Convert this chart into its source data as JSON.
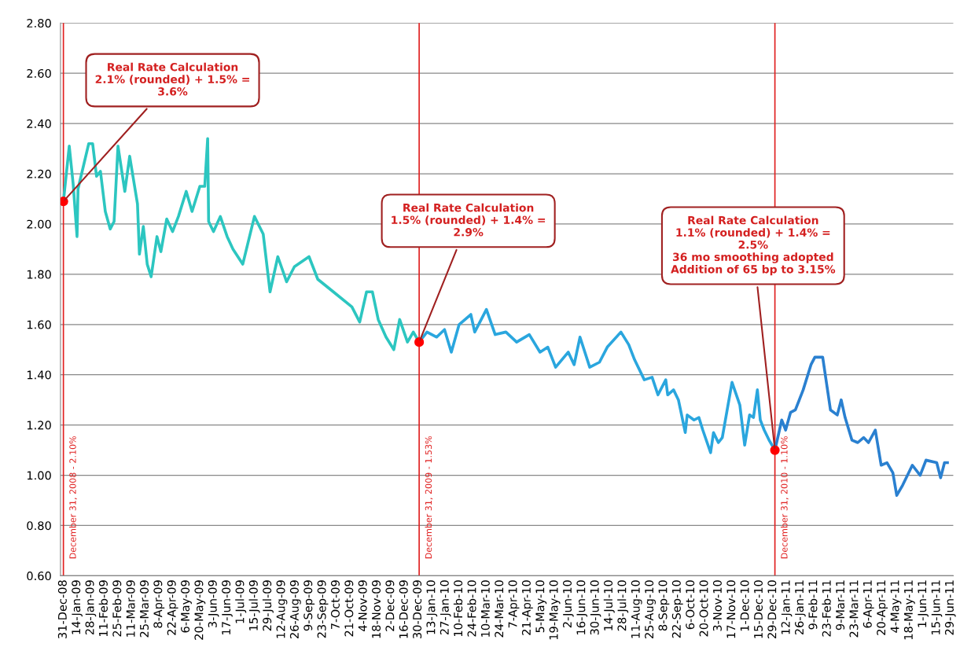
{
  "chart_data": {
    "type": "line",
    "ylim": [
      0.6,
      2.8
    ],
    "yticks": [
      {
        "value": 0.6,
        "label": "0.60"
      },
      {
        "value": 0.8,
        "label": "0.80"
      },
      {
        "value": 1.0,
        "label": "1.00"
      },
      {
        "value": 1.2,
        "label": "1.20"
      },
      {
        "value": 1.4,
        "label": "1.40"
      },
      {
        "value": 1.6,
        "label": "1.60"
      },
      {
        "value": 1.8,
        "label": "1.80"
      },
      {
        "value": 2.0,
        "label": "2.00"
      },
      {
        "value": 2.2,
        "label": "2.20"
      },
      {
        "value": 2.4,
        "label": "2.40"
      },
      {
        "value": 2.6,
        "label": "2.60"
      },
      {
        "value": 2.8,
        "label": "2.80"
      }
    ],
    "xlim": [
      "2008-12-28",
      "2011-07-02"
    ],
    "xticks": [
      {
        "value": "2008-12-31",
        "label": "31-Dec-08"
      },
      {
        "value": "2009-01-14",
        "label": "14-Jan-09"
      },
      {
        "value": "2009-01-28",
        "label": "28-Jan-09"
      },
      {
        "value": "2009-02-11",
        "label": "11-Feb-09"
      },
      {
        "value": "2009-02-25",
        "label": "25-Feb-09"
      },
      {
        "value": "2009-03-11",
        "label": "11-Mar-09"
      },
      {
        "value": "2009-03-25",
        "label": "25-Mar-09"
      },
      {
        "value": "2009-04-08",
        "label": "8-Apr-09"
      },
      {
        "value": "2009-04-22",
        "label": "22-Apr-09"
      },
      {
        "value": "2009-05-06",
        "label": "6-May-09"
      },
      {
        "value": "2009-05-20",
        "label": "20-May-09"
      },
      {
        "value": "2009-06-03",
        "label": "3-Jun-09"
      },
      {
        "value": "2009-06-17",
        "label": "17-Jun-09"
      },
      {
        "value": "2009-07-01",
        "label": "1-Jul-09"
      },
      {
        "value": "2009-07-15",
        "label": "15-Jul-09"
      },
      {
        "value": "2009-07-29",
        "label": "29-Jul-09"
      },
      {
        "value": "2009-08-12",
        "label": "12-Aug-09"
      },
      {
        "value": "2009-08-26",
        "label": "26-Aug-09"
      },
      {
        "value": "2009-09-09",
        "label": "9-Sep-09"
      },
      {
        "value": "2009-09-23",
        "label": "23-Sep-09"
      },
      {
        "value": "2009-10-07",
        "label": "7-Oct-09"
      },
      {
        "value": "2009-10-21",
        "label": "21-Oct-09"
      },
      {
        "value": "2009-11-04",
        "label": "4-Nov-09"
      },
      {
        "value": "2009-11-18",
        "label": "18-Nov-09"
      },
      {
        "value": "2009-12-02",
        "label": "2-Dec-09"
      },
      {
        "value": "2009-12-16",
        "label": "16-Dec-09"
      },
      {
        "value": "2009-12-30",
        "label": "30-Dec-09"
      },
      {
        "value": "2010-01-13",
        "label": "13-Jan-10"
      },
      {
        "value": "2010-01-27",
        "label": "27-Jan-10"
      },
      {
        "value": "2010-02-10",
        "label": "10-Feb-10"
      },
      {
        "value": "2010-02-24",
        "label": "24-Feb-10"
      },
      {
        "value": "2010-03-10",
        "label": "10-Mar-10"
      },
      {
        "value": "2010-03-24",
        "label": "24-Mar-10"
      },
      {
        "value": "2010-04-07",
        "label": "7-Apr-10"
      },
      {
        "value": "2010-04-21",
        "label": "21-Apr-10"
      },
      {
        "value": "2010-05-05",
        "label": "5-May-10"
      },
      {
        "value": "2010-05-19",
        "label": "19-May-10"
      },
      {
        "value": "2010-06-02",
        "label": "2-Jun-10"
      },
      {
        "value": "2010-06-16",
        "label": "16-Jun-10"
      },
      {
        "value": "2010-06-30",
        "label": "30-Jun-10"
      },
      {
        "value": "2010-07-14",
        "label": "14-Jul-10"
      },
      {
        "value": "2010-07-28",
        "label": "28-Jul-10"
      },
      {
        "value": "2010-08-11",
        "label": "11-Aug-10"
      },
      {
        "value": "2010-08-25",
        "label": "25-Aug-10"
      },
      {
        "value": "2010-09-08",
        "label": "8-Sep-10"
      },
      {
        "value": "2010-09-22",
        "label": "22-Sep-10"
      },
      {
        "value": "2010-10-06",
        "label": "6-Oct-10"
      },
      {
        "value": "2010-10-20",
        "label": "20-Oct-10"
      },
      {
        "value": "2010-11-03",
        "label": "3-Nov-10"
      },
      {
        "value": "2010-11-17",
        "label": "17-Nov-10"
      },
      {
        "value": "2010-12-01",
        "label": "1-Dec-10"
      },
      {
        "value": "2010-12-15",
        "label": "15-Dec-10"
      },
      {
        "value": "2010-12-29",
        "label": "29-Dec-10"
      },
      {
        "value": "2011-01-12",
        "label": "12-Jan-11"
      },
      {
        "value": "2011-01-26",
        "label": "26-Jan-11"
      },
      {
        "value": "2011-02-09",
        "label": "9-Feb-11"
      },
      {
        "value": "2011-02-23",
        "label": "23-Feb-11"
      },
      {
        "value": "2011-03-09",
        "label": "9-Mar-11"
      },
      {
        "value": "2011-03-23",
        "label": "23-Mar-11"
      },
      {
        "value": "2011-04-06",
        "label": "6-Apr-11"
      },
      {
        "value": "2011-04-20",
        "label": "20-Apr-11"
      },
      {
        "value": "2011-05-04",
        "label": "4-May-11"
      },
      {
        "value": "2011-05-18",
        "label": "18-May-11"
      },
      {
        "value": "2011-06-01",
        "label": "1-Jun-11"
      },
      {
        "value": "2011-06-15",
        "label": "15-Jun-11"
      },
      {
        "value": "2011-06-29",
        "label": "29-Jun-11"
      }
    ],
    "grid": "y",
    "legend": false,
    "line_style": "solid",
    "series": [
      {
        "color": "#2cc6c0",
        "x": [
          "2008-12-31",
          "2009-01-06",
          "2009-01-10",
          "2009-01-14",
          "2009-01-15",
          "2009-01-26",
          "2009-01-30",
          "2009-02-03",
          "2009-02-07",
          "2009-02-12",
          "2009-02-17",
          "2009-02-21",
          "2009-02-25",
          "2009-03-04",
          "2009-03-09",
          "2009-03-17",
          "2009-03-19",
          "2009-03-23",
          "2009-03-27",
          "2009-03-31",
          "2009-04-06",
          "2009-04-10",
          "2009-04-16",
          "2009-04-22",
          "2009-04-28",
          "2009-05-06",
          "2009-05-12",
          "2009-05-20",
          "2009-05-25",
          "2009-05-28",
          "2009-05-29",
          "2009-06-03",
          "2009-06-10",
          "2009-06-17",
          "2009-06-23",
          "2009-07-03",
          "2009-07-15",
          "2009-07-24",
          "2009-07-31",
          "2009-08-08",
          "2009-08-17",
          "2009-08-25",
          "2009-09-09",
          "2009-09-18",
          "2009-10-04",
          "2009-10-23",
          "2009-10-31",
          "2009-11-07",
          "2009-11-13",
          "2009-11-19",
          "2009-11-27",
          "2009-12-05",
          "2009-12-11",
          "2009-12-19",
          "2009-12-25",
          "2009-12-31"
        ],
        "values": [
          2.09,
          2.31,
          2.16,
          1.95,
          2.14,
          2.32,
          2.32,
          2.19,
          2.21,
          2.05,
          1.98,
          2.01,
          2.31,
          2.13,
          2.27,
          2.08,
          1.88,
          1.99,
          1.84,
          1.79,
          1.95,
          1.89,
          2.02,
          1.97,
          2.03,
          2.13,
          2.05,
          2.15,
          2.15,
          2.34,
          2.01,
          1.97,
          2.03,
          1.95,
          1.9,
          1.84,
          2.03,
          1.96,
          1.73,
          1.87,
          1.77,
          1.83,
          1.87,
          1.78,
          1.73,
          1.67,
          1.61,
          1.73,
          1.73,
          1.62,
          1.55,
          1.5,
          1.62,
          1.53,
          1.57,
          1.53
        ]
      },
      {
        "color": "#2aa6de",
        "x": [
          "2009-12-31",
          "2010-01-08",
          "2010-01-18",
          "2010-01-26",
          "2010-02-02",
          "2010-02-10",
          "2010-02-22",
          "2010-02-26",
          "2010-03-10",
          "2010-03-19",
          "2010-03-30",
          "2010-04-10",
          "2010-04-23",
          "2010-05-04",
          "2010-05-12",
          "2010-05-20",
          "2010-06-02",
          "2010-06-08",
          "2010-06-14",
          "2010-06-24",
          "2010-07-04",
          "2010-07-12",
          "2010-07-26",
          "2010-08-03",
          "2010-08-09",
          "2010-08-19",
          "2010-08-27",
          "2010-09-02",
          "2010-09-10",
          "2010-09-12",
          "2010-09-18",
          "2010-09-23",
          "2010-09-30",
          "2010-10-02",
          "2010-10-09",
          "2010-10-14",
          "2010-10-18",
          "2010-10-26",
          "2010-10-29",
          "2010-11-03",
          "2010-11-07",
          "2010-11-17",
          "2010-11-25",
          "2010-11-30",
          "2010-12-05",
          "2010-12-09",
          "2010-12-13",
          "2010-12-16",
          "2010-12-20",
          "2010-12-25",
          "2010-12-31"
        ],
        "values": [
          1.53,
          1.57,
          1.55,
          1.58,
          1.49,
          1.6,
          1.64,
          1.57,
          1.66,
          1.56,
          1.57,
          1.53,
          1.56,
          1.49,
          1.51,
          1.43,
          1.49,
          1.44,
          1.55,
          1.43,
          1.45,
          1.51,
          1.57,
          1.52,
          1.46,
          1.38,
          1.39,
          1.32,
          1.38,
          1.32,
          1.34,
          1.3,
          1.17,
          1.24,
          1.22,
          1.23,
          1.18,
          1.09,
          1.17,
          1.13,
          1.15,
          1.37,
          1.28,
          1.12,
          1.24,
          1.23,
          1.34,
          1.22,
          1.18,
          1.14,
          1.1
        ]
      },
      {
        "color": "#2a80d0",
        "x": [
          "2010-12-31",
          "2011-01-07",
          "2011-01-11",
          "2011-01-16",
          "2011-01-21",
          "2011-01-29",
          "2011-02-06",
          "2011-02-10",
          "2011-02-18",
          "2011-02-26",
          "2011-03-05",
          "2011-03-09",
          "2011-03-13",
          "2011-03-20",
          "2011-03-26",
          "2011-04-01",
          "2011-04-06",
          "2011-04-13",
          "2011-04-19",
          "2011-04-25",
          "2011-05-01",
          "2011-05-05",
          "2011-05-11",
          "2011-05-21",
          "2011-05-29",
          "2011-06-04",
          "2011-06-15",
          "2011-06-19",
          "2011-06-23",
          "2011-06-26"
        ],
        "values": [
          1.1,
          1.22,
          1.18,
          1.25,
          1.26,
          1.34,
          1.44,
          1.47,
          1.47,
          1.26,
          1.24,
          1.3,
          1.23,
          1.14,
          1.13,
          1.15,
          1.13,
          1.18,
          1.04,
          1.05,
          1.01,
          0.92,
          0.96,
          1.04,
          1.0,
          1.06,
          1.05,
          0.99,
          1.05,
          1.05
        ]
      },
      {
        "type": "scatter",
        "marker": "circle",
        "color": "#ff0000",
        "x": [
          "2008-12-31",
          "2009-12-31",
          "2010-12-31"
        ],
        "values": [
          2.09,
          1.53,
          1.1
        ]
      }
    ],
    "ref_lines": [
      {
        "axis": "x",
        "value": "2008-12-31",
        "label": "December 31, 2008 - 2.10%",
        "color": "#e02020"
      },
      {
        "axis": "x",
        "value": "2009-12-31",
        "label": "December 31, 2009 - 1.53%",
        "color": "#e02020"
      },
      {
        "axis": "x",
        "value": "2010-12-31",
        "label": "December 31, 2010 - 1.10%",
        "color": "#e02020"
      }
    ],
    "annotations": [
      {
        "text": "Real Rate Calculation\n2.1% (rounded) + 1.5% =\n3.6%",
        "x": "2008-12-31",
        "y": 2.09
      },
      {
        "text": "Real Rate Calculation\n1.5% (rounded) + 1.4% =\n2.9%",
        "x": "2009-12-31",
        "y": 1.53
      },
      {
        "text": "Real Rate Calculation\n1.1% (rounded) + 1.4% =\n2.5%\n36 mo smoothing adopted\nAddition of 65 bp to 3.15%",
        "x": "2010-12-31",
        "y": 1.1
      }
    ]
  }
}
